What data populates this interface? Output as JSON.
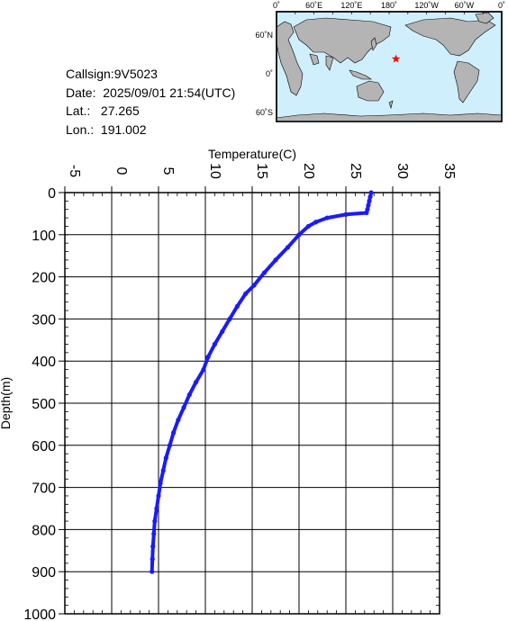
{
  "info": {
    "callsign": "Callsign:9V5023",
    "date": "Date:  2025/09/01 21:54(UTC)",
    "lat": "Lat.:   27.265",
    "lon": "Lon.:  191.002"
  },
  "map": {
    "lon_labels": [
      "0˚",
      "60˚E",
      "120˚E",
      "180˚",
      "120˚W",
      "60˚W",
      "0˚"
    ],
    "lat_labels": [
      "60˚N",
      "0˚",
      "60˚S"
    ],
    "marker": {
      "lat": 27.265,
      "lon": 191.002,
      "color": "#ff0000"
    },
    "ocean_color": "#cfeffc",
    "land_color": "#b4b4b4"
  },
  "chart_data": {
    "type": "line",
    "title": "",
    "xlabel": "Temperature(C)",
    "ylabel": "Depth(m)",
    "xlim": [
      -5,
      35
    ],
    "ylim": [
      1000,
      0
    ],
    "x_ticks": [
      "-5",
      "0",
      "5",
      "10",
      "15",
      "20",
      "25",
      "30",
      "35"
    ],
    "y_ticks": [
      "0",
      "100",
      "200",
      "300",
      "400",
      "500",
      "600",
      "700",
      "800",
      "900",
      "1000"
    ],
    "grid": true,
    "series_color": "#1a1aff",
    "series": [
      {
        "x": [
          27.7,
          27.6,
          27.5,
          27.4,
          27.3,
          27.2,
          25.0,
          23.0,
          21.8,
          21.0,
          20.0,
          18.8,
          17.5,
          16.3,
          15.2,
          14.3,
          13.4,
          12.6,
          11.8,
          11.0,
          10.3,
          9.8,
          9.0,
          8.3,
          7.7,
          7.1,
          6.6,
          6.2,
          5.8,
          5.5,
          5.2,
          5.0,
          4.8,
          4.6,
          4.5,
          4.4,
          4.35,
          4.3
        ],
        "y": [
          0,
          10,
          20,
          30,
          40,
          48,
          52,
          60,
          70,
          80,
          100,
          130,
          160,
          190,
          220,
          240,
          270,
          300,
          330,
          360,
          390,
          420,
          450,
          480,
          510,
          540,
          570,
          600,
          630,
          660,
          690,
          720,
          750,
          780,
          810,
          840,
          870,
          900
        ]
      }
    ]
  }
}
